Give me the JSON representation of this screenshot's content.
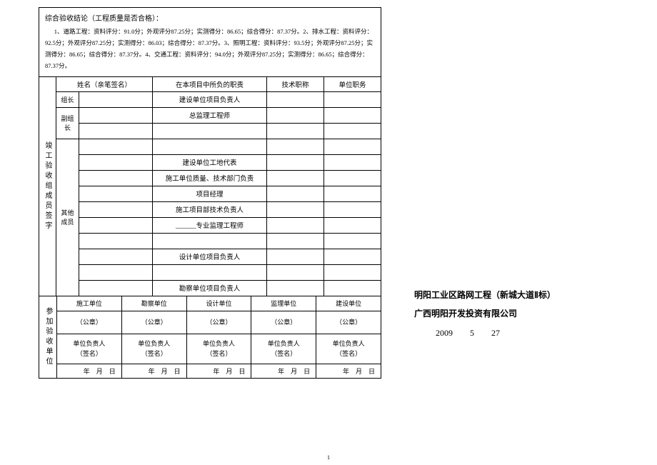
{
  "conclusion": {
    "title": "综合验收结论（工程质量是否合格）：",
    "body": "1、道路工程：资料评分：91.0分；外观评分87.25分；实测得分：86.65；综合得分：87.37分。2、排水工程：资料评分：92.5分；外观评分87.25分；实测得分：86.03；综合得分：87.37分。3、照明工程：资料评分：93.5分；外观评分87.25分；实测得分：86.65；综合得分：87.37分。4、交通工程：资料评分：94.0分；外观评分87.25分；实测得分：86.65；综合得分：87.37分。"
  },
  "headers": {
    "name": "姓名（亲笔签名）",
    "duty": "在本项目中所负的职责",
    "tech_title": "技术职称",
    "unit_post": "单位职务"
  },
  "side_labels": {
    "members": "竣工验收组成员签字",
    "units": "参加验收单位"
  },
  "groups": {
    "leader": "组长",
    "vice": "副组长",
    "other": "其他成员"
  },
  "roles": {
    "leader1": "建设单位项目负责人",
    "vice1": "总监理工程师",
    "vice2": "",
    "o1": "建设单位工地代表",
    "o2": "施工单位质量、技术部门负责",
    "o3": "项目经理",
    "o4": "施工项目部技术负责人",
    "o5_prefix": "______",
    "o5_suffix": "专业监理工程师",
    "o6": "",
    "o7": "设计单位项目负责人",
    "o8": "",
    "o9": "勘察单位项目负责人"
  },
  "units": {
    "u1": "施工单位",
    "u2": "勘察单位",
    "u3": "设计单位",
    "u4": "监理单位",
    "u5": "建设单位",
    "seal": "（公章）",
    "resp1": "单位负责人",
    "resp2": "（签名）",
    "date": "年　月　日"
  },
  "right": {
    "title": "明阳工业区路网工程（新城大道Ⅱ标）",
    "company": "广西明阳开发投资有限公司",
    "date": "2009　　5　　27"
  },
  "page": "1"
}
